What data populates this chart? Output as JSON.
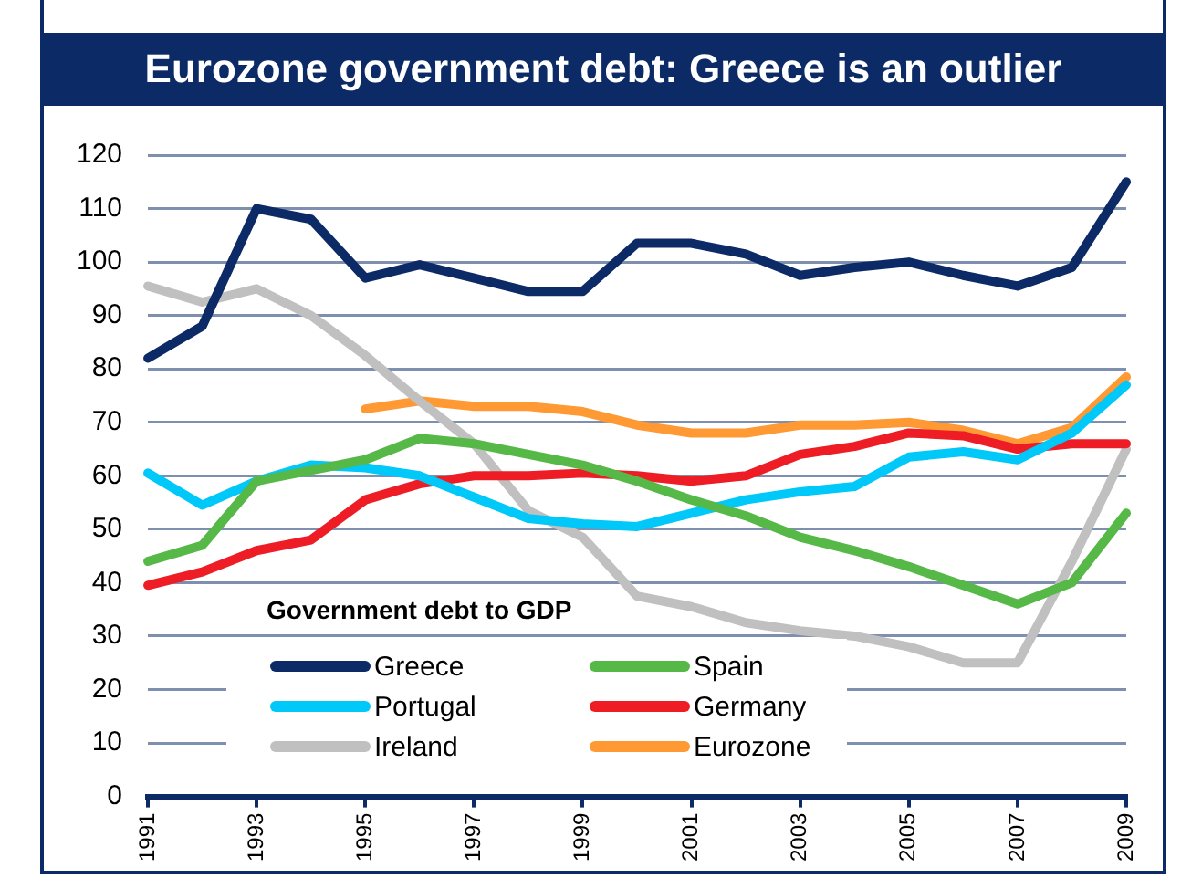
{
  "chart_data": {
    "type": "line",
    "title": "Eurozone government debt: Greece is an outlier",
    "legend_title": "Government debt to GDP",
    "categories": [
      "1991",
      null,
      "1993",
      null,
      "1995",
      null,
      "1997",
      null,
      "1999",
      null,
      "2001",
      null,
      "2003",
      null,
      "2005",
      null,
      "2007",
      null,
      "2009"
    ],
    "series": [
      {
        "name": "Greece",
        "color": "#0c2a66",
        "values": [
          82,
          88,
          110,
          108,
          97,
          99.5,
          97,
          94.5,
          94.5,
          103.5,
          103.5,
          101.5,
          97.5,
          99,
          100,
          97.5,
          95.5,
          99,
          115
        ]
      },
      {
        "name": "Spain",
        "color": "#56b847",
        "values": [
          44,
          47,
          59,
          61,
          63,
          67,
          66,
          64,
          62,
          59,
          55.5,
          52.5,
          48.5,
          46,
          43,
          39.5,
          36,
          40,
          53
        ]
      },
      {
        "name": "Portugal",
        "color": "#00c8f8",
        "values": [
          60.5,
          54.5,
          59,
          62,
          61.5,
          60,
          56,
          52,
          51,
          50.5,
          53,
          55.5,
          57,
          58,
          63.5,
          64.5,
          63,
          68,
          77
        ]
      },
      {
        "name": "Germany",
        "color": "#ee1c25",
        "values": [
          39.5,
          42,
          46,
          48,
          55.5,
          58.5,
          60,
          60,
          60.5,
          60,
          59,
          60,
          64,
          65.5,
          68,
          67.5,
          65,
          66,
          66
        ]
      },
      {
        "name": "Ireland",
        "color": "#c0c0c0",
        "values": [
          95.5,
          92.5,
          95,
          90,
          82.5,
          74,
          66,
          53.5,
          48.5,
          37.5,
          35.5,
          32.5,
          31,
          30,
          28,
          25,
          25,
          44,
          65
        ]
      },
      {
        "name": "Eurozone",
        "color": "#ff9933",
        "values": [
          null,
          null,
          null,
          null,
          72.5,
          74,
          73,
          73,
          72,
          69.5,
          68,
          68,
          69.5,
          69.5,
          70,
          68.5,
          66,
          69,
          78.5
        ]
      }
    ],
    "ylim": [
      0,
      120
    ],
    "yticks": [
      0,
      10,
      20,
      30,
      40,
      50,
      60,
      70,
      80,
      90,
      100,
      110,
      120
    ],
    "grid": "y",
    "legend": "bottom",
    "marker": "none",
    "line_style": "solid"
  }
}
